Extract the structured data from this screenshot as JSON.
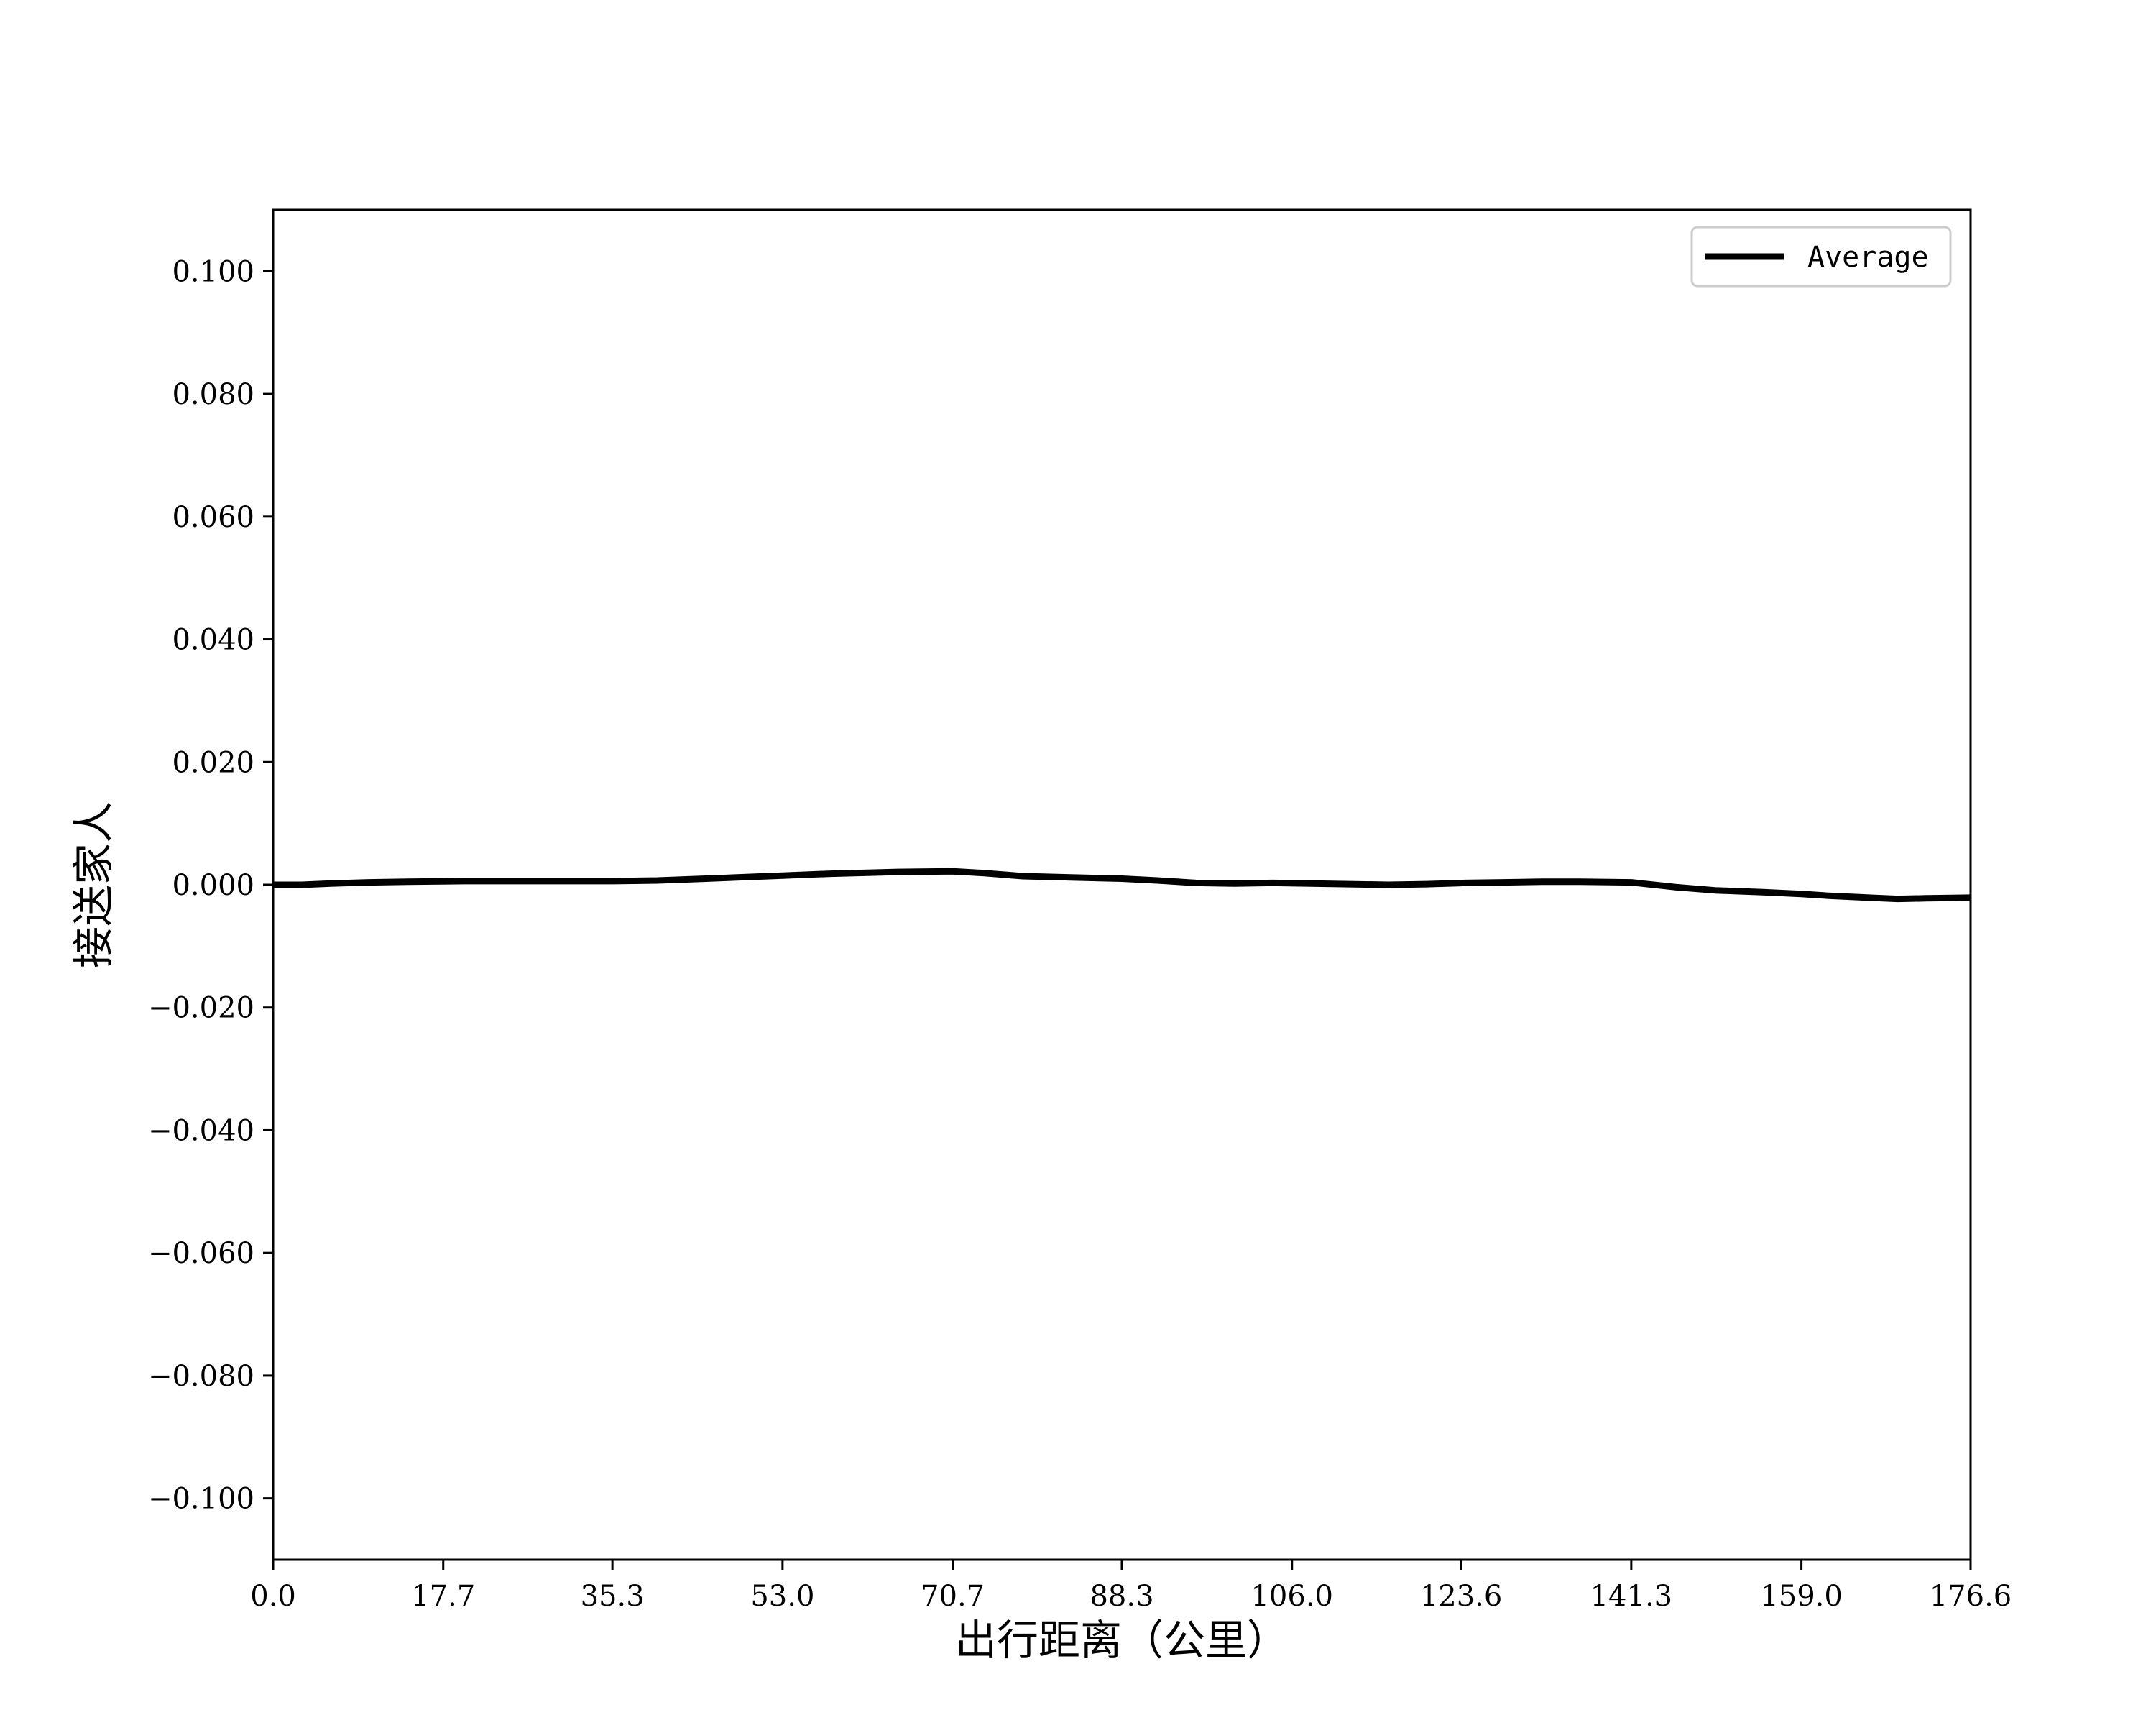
{
  "chart_data": {
    "type": "line",
    "title": "",
    "xlabel": "出行距离（公里）",
    "ylabel": "接送家人",
    "xlim": [
      0.0,
      176.6
    ],
    "ylim": [
      -0.11,
      0.11
    ],
    "grid": false,
    "legend_position": "top-right",
    "x_ticks": [
      "0.0",
      "17.7",
      "35.3",
      "53.0",
      "70.7",
      "88.3",
      "106.0",
      "123.6",
      "141.3",
      "159.0",
      "176.6"
    ],
    "y_ticks": [
      "0.100",
      "0.080",
      "0.060",
      "0.040",
      "0.020",
      "0.000",
      "−0.020",
      "−0.040",
      "−0.060",
      "−0.080",
      "−0.100"
    ],
    "series": [
      {
        "name": "Average",
        "color": "#000000",
        "x": [
          0.0,
          3.0,
          6.0,
          10.0,
          14.0,
          20.0,
          28.0,
          35.3,
          40.0,
          45.0,
          53.0,
          58.0,
          65.0,
          70.7,
          74.0,
          78.0,
          83.0,
          88.3,
          92.0,
          96.0,
          100.0,
          104.0,
          108.0,
          112.0,
          116.0,
          120.0,
          124.0,
          128.0,
          132.0,
          136.0,
          141.3,
          146.0,
          150.0,
          155.0,
          159.0,
          162.0,
          166.0,
          169.0,
          172.0,
          176.6
        ],
        "y": [
          0.0,
          0.0,
          0.0002,
          0.0004,
          0.0005,
          0.0006,
          0.0006,
          0.0006,
          0.0007,
          0.001,
          0.0015,
          0.0018,
          0.0021,
          0.0022,
          0.0019,
          0.0014,
          0.0012,
          0.001,
          0.0007,
          0.0003,
          0.0002,
          0.0003,
          0.0002,
          0.0001,
          0.0,
          0.0001,
          0.0003,
          0.0004,
          0.0005,
          0.0005,
          0.0004,
          -0.0004,
          -0.0009,
          -0.0012,
          -0.0015,
          -0.0018,
          -0.0021,
          -0.0023,
          -0.0022,
          -0.0021
        ]
      }
    ]
  }
}
